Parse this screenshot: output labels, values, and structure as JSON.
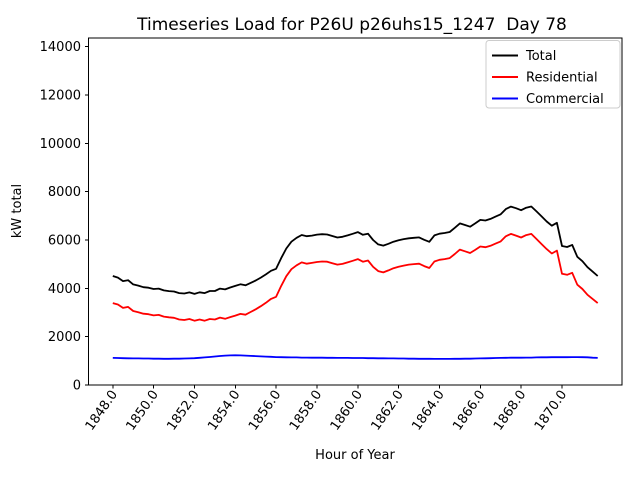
{
  "chart_data": {
    "type": "line",
    "title": "Timeseries Load for P26U p26uhs15_1247  Day 78",
    "xlabel": "Hour of Year",
    "ylabel": "kW total",
    "xlim": [
      1846.81,
      1872.94
    ],
    "ylim": [
      0,
      14355
    ],
    "grid": false,
    "legend_position": "upper right",
    "legend_labels": [
      "Total",
      "Residential",
      "Commercial"
    ],
    "xtick_values": [
      1848,
      1850,
      1852,
      1854,
      1856,
      1858,
      1860,
      1862,
      1864,
      1866,
      1868,
      1870
    ],
    "xtick_labels": [
      "1848.0",
      "1850.0",
      "1852.0",
      "1854.0",
      "1856.0",
      "1858.0",
      "1860.0",
      "1862.0",
      "1864.0",
      "1866.0",
      "1868.0",
      "1870.0"
    ],
    "ytick_values": [
      0,
      2000,
      4000,
      6000,
      8000,
      10000,
      12000,
      14000
    ],
    "ytick_labels": [
      "0",
      "2000",
      "4000",
      "6000",
      "8000",
      "10000",
      "12000",
      "14000"
    ],
    "x": [
      1848.0,
      1848.25,
      1848.5,
      1848.75,
      1849.0,
      1849.25,
      1849.5,
      1849.75,
      1850.0,
      1850.25,
      1850.5,
      1850.75,
      1851.0,
      1851.25,
      1851.5,
      1851.75,
      1852.0,
      1852.25,
      1852.5,
      1852.75,
      1853.0,
      1853.25,
      1853.5,
      1853.75,
      1854.0,
      1854.25,
      1854.5,
      1854.75,
      1855.0,
      1855.25,
      1855.5,
      1855.75,
      1856.0,
      1856.25,
      1856.5,
      1856.75,
      1857.0,
      1857.25,
      1857.5,
      1857.75,
      1858.0,
      1858.25,
      1858.5,
      1858.75,
      1859.0,
      1859.25,
      1859.5,
      1859.75,
      1860.0,
      1860.25,
      1860.5,
      1860.75,
      1861.0,
      1861.25,
      1861.5,
      1861.75,
      1862.0,
      1862.25,
      1862.5,
      1862.75,
      1863.0,
      1863.25,
      1863.5,
      1863.75,
      1864.0,
      1864.25,
      1864.5,
      1864.75,
      1865.0,
      1865.25,
      1865.5,
      1865.75,
      1866.0,
      1866.25,
      1866.5,
      1866.75,
      1867.0,
      1867.25,
      1867.5,
      1867.75,
      1868.0,
      1868.25,
      1868.5,
      1868.75,
      1869.0,
      1869.25,
      1869.5,
      1869.75,
      1870.0,
      1870.25,
      1870.5,
      1870.75,
      1871.0,
      1871.25,
      1871.5,
      1871.75
    ],
    "series": [
      {
        "name": "Total",
        "color": "#000000",
        "values": [
          4510,
          4445,
          4300,
          4335,
          4160,
          4110,
          4045,
          4025,
          3970,
          3990,
          3915,
          3885,
          3870,
          3800,
          3785,
          3830,
          3770,
          3835,
          3800,
          3890,
          3890,
          3990,
          3955,
          4035,
          4100,
          4165,
          4125,
          4225,
          4325,
          4445,
          4575,
          4725,
          4805,
          5250,
          5645,
          5930,
          6090,
          6205,
          6155,
          6180,
          6220,
          6240,
          6225,
          6165,
          6100,
          6130,
          6190,
          6255,
          6325,
          6215,
          6260,
          6000,
          5815,
          5765,
          5840,
          5930,
          5985,
          6035,
          6070,
          6090,
          6105,
          6005,
          5925,
          6190,
          6260,
          6290,
          6330,
          6505,
          6685,
          6620,
          6550,
          6685,
          6830,
          6805,
          6870,
          6965,
          7060,
          7275,
          7380,
          7315,
          7230,
          7335,
          7385,
          7180,
          6975,
          6765,
          6590,
          6710,
          5750,
          5710,
          5795,
          5305,
          5120,
          4875,
          4690,
          4510
        ]
      },
      {
        "name": "Residential",
        "color": "#ff0000",
        "values": [
          3390,
          3330,
          3190,
          3230,
          3060,
          3010,
          2950,
          2930,
          2880,
          2900,
          2830,
          2800,
          2780,
          2710,
          2690,
          2730,
          2660,
          2710,
          2660,
          2730,
          2710,
          2790,
          2740,
          2810,
          2870,
          2940,
          2910,
          3020,
          3130,
          3260,
          3400,
          3560,
          3650,
          4100,
          4500,
          4790,
          4950,
          5070,
          5020,
          5050,
          5090,
          5110,
          5100,
          5040,
          4980,
          5010,
          5070,
          5140,
          5210,
          5100,
          5150,
          4890,
          4710,
          4660,
          4740,
          4830,
          4890,
          4940,
          4980,
          5000,
          5020,
          4920,
          4840,
          5110,
          5180,
          5210,
          5250,
          5420,
          5600,
          5530,
          5460,
          5590,
          5730,
          5700,
          5760,
          5850,
          5940,
          6150,
          6250,
          6180,
          6100,
          6200,
          6250,
          6040,
          5830,
          5620,
          5440,
          5560,
          4600,
          4560,
          4640,
          4150,
          3970,
          3730,
          3560,
          3390
        ]
      },
      {
        "name": "Commercial",
        "color": "#0000ff",
        "values": [
          1120,
          1115,
          1110,
          1105,
          1100,
          1100,
          1095,
          1095,
          1090,
          1090,
          1085,
          1085,
          1090,
          1090,
          1095,
          1100,
          1110,
          1125,
          1140,
          1160,
          1180,
          1200,
          1215,
          1225,
          1230,
          1225,
          1215,
          1205,
          1195,
          1185,
          1175,
          1165,
          1155,
          1150,
          1145,
          1140,
          1140,
          1135,
          1135,
          1130,
          1130,
          1130,
          1125,
          1125,
          1120,
          1120,
          1120,
          1115,
          1115,
          1115,
          1110,
          1110,
          1105,
          1105,
          1100,
          1100,
          1095,
          1095,
          1090,
          1090,
          1085,
          1085,
          1085,
          1080,
          1080,
          1080,
          1080,
          1085,
          1085,
          1090,
          1090,
          1095,
          1100,
          1105,
          1110,
          1115,
          1120,
          1125,
          1130,
          1135,
          1130,
          1135,
          1135,
          1140,
          1145,
          1145,
          1150,
          1150,
          1150,
          1150,
          1155,
          1155,
          1150,
          1145,
          1130,
          1120
        ]
      }
    ]
  }
}
